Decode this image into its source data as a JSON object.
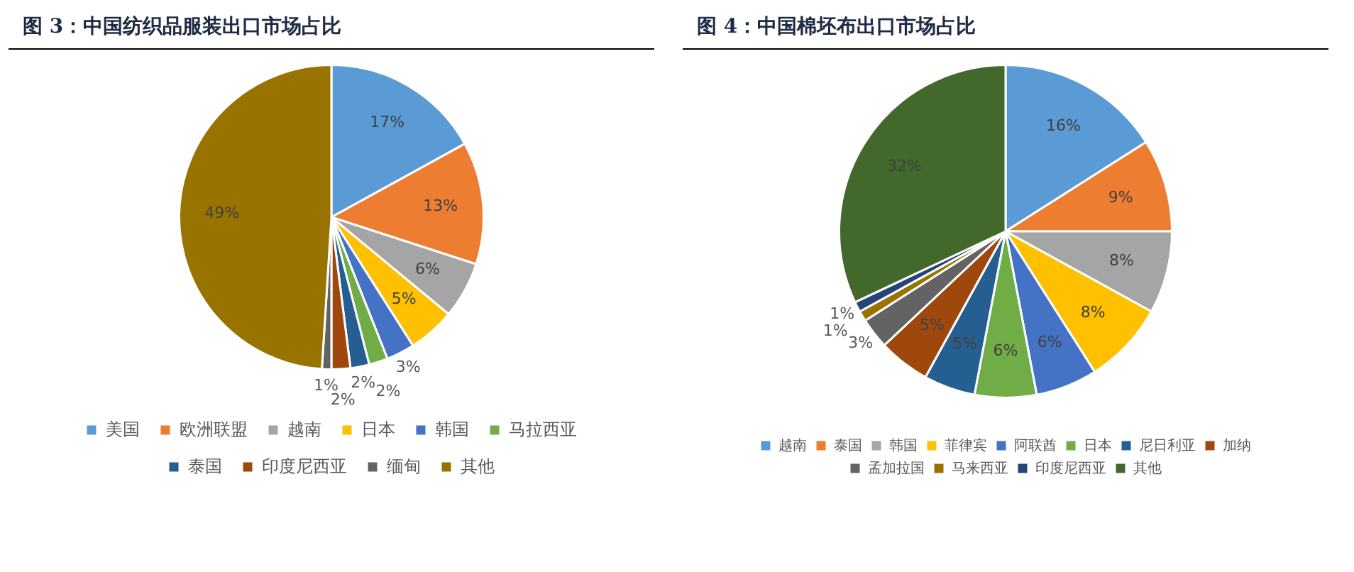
{
  "chart_data": [
    {
      "type": "pie",
      "title": "图 3：中国纺织品服装出口市场占比",
      "categories": [
        "美国",
        "欧洲联盟",
        "越南",
        "日本",
        "韩国",
        "马拉西亚",
        "泰国",
        "印度尼西亚",
        "缅甸",
        "其他"
      ],
      "values": [
        17,
        13,
        6,
        5,
        3,
        2,
        2,
        2,
        1,
        49
      ],
      "value_labels": [
        "17%",
        "13%",
        "6%",
        "5%",
        "3%",
        "2%",
        "2%",
        "2%",
        "1%",
        "49%"
      ],
      "colors": [
        "#5b9bd5",
        "#ed7d31",
        "#a5a5a5",
        "#ffc000",
        "#4472c4",
        "#70ad47",
        "#255e91",
        "#9e480e",
        "#636363",
        "#997300"
      ],
      "legend": "bottom"
    },
    {
      "type": "pie",
      "title": "图 4：中国棉坯布出口市场占比",
      "categories": [
        "越南",
        "泰国",
        "韩国",
        "菲律宾",
        "阿联酋",
        "日本",
        "尼日利亚",
        "加纳",
        "孟加拉国",
        "马来西亚",
        "印度尼西亚",
        "其他"
      ],
      "values": [
        16,
        9,
        8,
        8,
        6,
        6,
        5,
        5,
        3,
        1,
        1,
        32
      ],
      "value_labels": [
        "16%",
        "9%",
        "8%",
        "8%",
        "6%",
        "6%",
        "5%",
        "5%",
        "3%",
        "1%",
        "1%",
        "32%"
      ],
      "colors": [
        "#5b9bd5",
        "#ed7d31",
        "#a5a5a5",
        "#ffc000",
        "#4472c4",
        "#70ad47",
        "#255e91",
        "#9e480e",
        "#636363",
        "#997300",
        "#264478",
        "#43682b"
      ],
      "legend": "bottom"
    }
  ]
}
